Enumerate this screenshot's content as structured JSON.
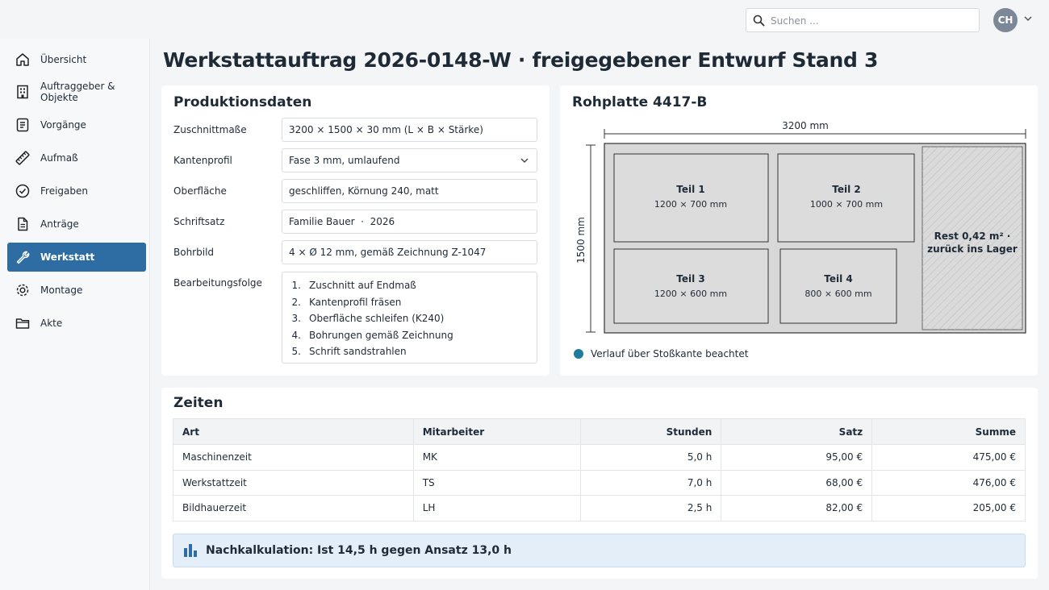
{
  "header": {
    "search_placeholder": "Suchen ...",
    "avatar_initials": "CH"
  },
  "sidebar": {
    "items": [
      {
        "label": "Übersicht",
        "icon": "home-icon"
      },
      {
        "label": "Auftraggeber & Objekte",
        "icon": "building-icon"
      },
      {
        "label": "Vorgänge",
        "icon": "list-icon"
      },
      {
        "label": "Aufmaß",
        "icon": "ruler-icon"
      },
      {
        "label": "Freigaben",
        "icon": "check-circle-icon"
      },
      {
        "label": "Anträge",
        "icon": "document-icon"
      },
      {
        "label": "Werkstatt",
        "icon": "wrench-icon",
        "active": true
      },
      {
        "label": "Montage",
        "icon": "gear-icon"
      },
      {
        "label": "Akte",
        "icon": "folder-icon"
      }
    ]
  },
  "page": {
    "title": "Werkstattauftrag 2026-0148-W · freigegebener Entwurf Stand 3"
  },
  "produktionsdaten": {
    "title": "Produktionsdaten",
    "fields": [
      {
        "label": "Zuschnittmaße",
        "value": "3200 × 1500 × 30 mm (L × B × Stärke)"
      },
      {
        "label": "Kantenprofil",
        "value": "Fase 3 mm, umlaufend"
      },
      {
        "label": "Oberfläche",
        "value": "geschliffen, Körnung 240, matt"
      },
      {
        "label": "Schriftsatz",
        "value": "Familie Bauer  ·  2026"
      },
      {
        "label": "Bohrbild",
        "value": "4 × Ø 12 mm, gemäß Zeichnung Z-1047"
      }
    ],
    "sequence_label": "Bearbeitungsfolge",
    "steps": [
      {
        "num": "1.",
        "text": "Zuschnitt auf Endmaß"
      },
      {
        "num": "2.",
        "text": "Kantenprofil fräsen"
      },
      {
        "num": "3.",
        "text": "Oberfläche schleifen (K240)"
      },
      {
        "num": "4.",
        "text": "Bohrungen gemäß Zeichnung"
      },
      {
        "num": "5.",
        "text": "Schrift sandstrahlen"
      }
    ]
  },
  "rohplatte": {
    "title": "Rohplatte 4417-B",
    "width_label": "3200 mm",
    "height_label": "1500 mm",
    "parts": [
      {
        "name": "Teil 1",
        "dims": "1200 × 700 mm"
      },
      {
        "name": "Teil 2",
        "dims": "1000 × 700 mm"
      },
      {
        "name": "Teil 3",
        "dims": "1200 × 600 mm"
      },
      {
        "name": "Teil 4",
        "dims": "800 × 600 mm"
      }
    ],
    "rest_line1": "Rest 0,42 m² ·",
    "rest_line2": "zurück ins Lager",
    "legend": "Verlauf über Stoßkante beachtet",
    "legend_color": "#1f7c9e"
  },
  "zeiten": {
    "title": "Zeiten",
    "columns": [
      "Art",
      "Mitarbeiter",
      "Stunden",
      "Satz",
      "Summe"
    ],
    "rows": [
      [
        "Maschinenzeit",
        "MK",
        "5,0 h",
        "95,00 €",
        "475,00 €"
      ],
      [
        "Werkstattzeit",
        "TS",
        "7,0 h",
        "68,00 €",
        "476,00 €"
      ],
      [
        "Bildhauerzeit",
        "LH",
        "2,5 h",
        "82,00 €",
        "205,00 €"
      ]
    ],
    "nachkalkulation": "Nachkalkulation: Ist 14,5 h gegen Ansatz 13,0 h"
  },
  "colors": {
    "accent": "#2e6da4",
    "info_bg": "#e3eef8"
  }
}
